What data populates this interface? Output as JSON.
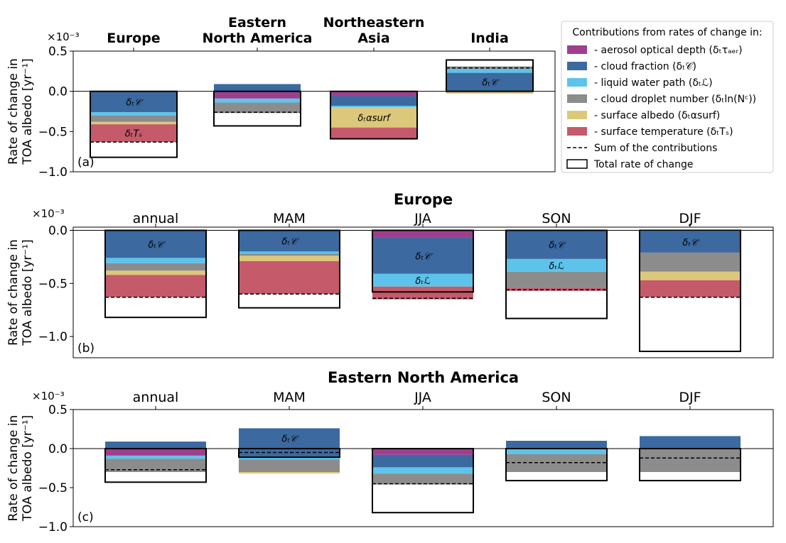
{
  "figure": {
    "common": {
      "ylabel_line1": "Rate of change in",
      "ylabel_line2": "TOA albedo [yr⁻¹]",
      "scale_label": "×10⁻³"
    },
    "legend": {
      "title": "Contributions from rates of change in:",
      "items": [
        {
          "label": "- aerosol optical depth (δₜτₐₑᵣ)",
          "color": "#9e3f8e",
          "kind": "patch"
        },
        {
          "label": "- cloud fraction (δₜ𝒞)",
          "color": "#3b69a0",
          "kind": "patch"
        },
        {
          "label": "- liquid water path (δₜℒ)",
          "color": "#5ec3ea",
          "kind": "patch"
        },
        {
          "label": "- cloud droplet number (δₜln(Nᶜ))",
          "color": "#8c8c8c",
          "kind": "patch"
        },
        {
          "label": "- surface albedo (δₜαsurf)",
          "color": "#dcc87a",
          "kind": "patch"
        },
        {
          "label": "- surface temperature (δₜTₛ)",
          "color": "#c55a6a",
          "kind": "patch"
        },
        {
          "label": "Sum of the contributions",
          "color": "#000000",
          "kind": "dash"
        },
        {
          "label": "Total rate of change",
          "color": "#000000",
          "kind": "box"
        }
      ]
    }
  },
  "chart_data": [
    {
      "type": "bar",
      "panel_label": "(a)",
      "title": "",
      "ylim": [
        -1.0,
        0.5
      ],
      "yticks": [
        "0.5",
        "0.0",
        "−0.5",
        "−1.0"
      ],
      "ytick_values": [
        0.5,
        0.0,
        -0.5,
        -1.0
      ],
      "categories": [
        "Europe",
        "Eastern\nNorth America",
        "Northeastern\nAsia",
        "India"
      ],
      "bars": [
        {
          "segments": [
            {
              "key": "cloud_fraction",
              "from": 0.0,
              "to": -0.26,
              "label": "δₜ𝒞"
            },
            {
              "key": "lwp",
              "from": -0.26,
              "to": -0.3
            },
            {
              "key": "droplet",
              "from": -0.3,
              "to": -0.38
            },
            {
              "key": "albedo",
              "from": -0.38,
              "to": -0.41
            },
            {
              "key": "temperature",
              "from": -0.41,
              "to": -0.63,
              "label": "δₜTₛ"
            }
          ],
          "sum": -0.63,
          "total": -0.82
        },
        {
          "segments": [
            {
              "key": "cloud_fraction",
              "from": 0.0,
              "to": 0.09
            },
            {
              "key": "aerosol",
              "from": 0.0,
              "to": -0.09
            },
            {
              "key": "lwp",
              "from": -0.09,
              "to": -0.14
            },
            {
              "key": "droplet",
              "from": -0.14,
              "to": -0.27
            }
          ],
          "sum": -0.26,
          "total": -0.43
        },
        {
          "segments": [
            {
              "key": "aerosol",
              "from": 0.0,
              "to": -0.06
            },
            {
              "key": "cloud_fraction",
              "from": -0.06,
              "to": -0.18
            },
            {
              "key": "lwp",
              "from": -0.18,
              "to": -0.2
            },
            {
              "key": "albedo",
              "from": -0.2,
              "to": -0.45,
              "label": "δₜαsurf"
            },
            {
              "key": "temperature",
              "from": -0.45,
              "to": -0.59
            }
          ],
          "sum": -0.59,
          "total": -0.59
        },
        {
          "segments": [
            {
              "key": "cloud_fraction",
              "from": 0.0,
              "to": 0.23,
              "label": "δₜ𝒞"
            },
            {
              "key": "lwp",
              "from": 0.23,
              "to": 0.28
            },
            {
              "key": "droplet",
              "from": 0.28,
              "to": 0.31
            },
            {
              "key": "albedo",
              "from": 0.0,
              "to": -0.03
            }
          ],
          "sum": 0.29,
          "total": 0.39
        }
      ]
    },
    {
      "type": "bar",
      "panel_label": "(b)",
      "title": "Europe",
      "ylim": [
        -1.2,
        0.03
      ],
      "yticks": [
        "0.0",
        "−0.5",
        "−1.0"
      ],
      "ytick_values": [
        0.0,
        -0.5,
        -1.0
      ],
      "categories": [
        "annual",
        "MAM",
        "JJA",
        "SON",
        "DJF"
      ],
      "bars": [
        {
          "segments": [
            {
              "key": "cloud_fraction",
              "from": 0.0,
              "to": -0.26,
              "label": "δₜ𝒞"
            },
            {
              "key": "lwp",
              "from": -0.26,
              "to": -0.31
            },
            {
              "key": "droplet",
              "from": -0.31,
              "to": -0.38
            },
            {
              "key": "albedo",
              "from": -0.38,
              "to": -0.42
            },
            {
              "key": "temperature",
              "from": -0.42,
              "to": -0.63
            }
          ],
          "sum": -0.63,
          "total": -0.82
        },
        {
          "segments": [
            {
              "key": "cloud_fraction",
              "from": 0.0,
              "to": -0.2,
              "label": "δₜ𝒞"
            },
            {
              "key": "lwp",
              "from": -0.2,
              "to": -0.22
            },
            {
              "key": "droplet",
              "from": -0.22,
              "to": -0.24
            },
            {
              "key": "albedo",
              "from": -0.24,
              "to": -0.29
            },
            {
              "key": "temperature",
              "from": -0.29,
              "to": -0.6
            }
          ],
          "sum": -0.6,
          "total": -0.73
        },
        {
          "segments": [
            {
              "key": "aerosol",
              "from": 0.0,
              "to": -0.07
            },
            {
              "key": "cloud_fraction",
              "from": -0.07,
              "to": -0.41,
              "label": "δₜ𝒞"
            },
            {
              "key": "lwp",
              "from": -0.41,
              "to": -0.53,
              "label": "δₜℒ"
            },
            {
              "key": "temperature",
              "from": -0.53,
              "to": -0.65
            }
          ],
          "sum": -0.64,
          "total": -0.58
        },
        {
          "segments": [
            {
              "key": "cloud_fraction",
              "from": 0.0,
              "to": -0.27,
              "label": "δₜ𝒞"
            },
            {
              "key": "lwp",
              "from": -0.27,
              "to": -0.39,
              "label": "δₜℒ"
            },
            {
              "key": "droplet",
              "from": -0.39,
              "to": -0.54
            },
            {
              "key": "temperature",
              "from": -0.54,
              "to": -0.57
            }
          ],
          "sum": -0.56,
          "total": -0.83
        },
        {
          "segments": [
            {
              "key": "lwp",
              "from": 0.0,
              "to": -0.01
            },
            {
              "key": "cloud_fraction",
              "from": -0.01,
              "to": -0.21,
              "label": "δₜ𝒞"
            },
            {
              "key": "droplet",
              "from": -0.21,
              "to": -0.39
            },
            {
              "key": "albedo",
              "from": -0.39,
              "to": -0.47
            },
            {
              "key": "temperature",
              "from": -0.47,
              "to": -0.63
            }
          ],
          "sum": -0.63,
          "total": -1.14
        }
      ]
    },
    {
      "type": "bar",
      "panel_label": "(c)",
      "title": "Eastern North America",
      "ylim": [
        -1.0,
        0.5
      ],
      "yticks": [
        "0.5",
        "0.0",
        "−0.5",
        "−1.0"
      ],
      "ytick_values": [
        0.5,
        0.0,
        -0.5,
        -1.0
      ],
      "categories": [
        "annual",
        "MAM",
        "JJA",
        "SON",
        "DJF"
      ],
      "bars": [
        {
          "segments": [
            {
              "key": "cloud_fraction",
              "from": 0.0,
              "to": 0.09
            },
            {
              "key": "aerosol",
              "from": 0.0,
              "to": -0.09
            },
            {
              "key": "lwp",
              "from": -0.09,
              "to": -0.13
            },
            {
              "key": "droplet",
              "from": -0.13,
              "to": -0.3
            }
          ],
          "sum": -0.27,
          "total": -0.43
        },
        {
          "segments": [
            {
              "key": "cloud_fraction",
              "from": 0.0,
              "to": 0.26,
              "label": "δₜ𝒞"
            },
            {
              "key": "cloud_fraction",
              "from": 0.0,
              "to": -0.1
            },
            {
              "key": "lwp",
              "from": -0.1,
              "to": -0.14
            },
            {
              "key": "droplet",
              "from": -0.14,
              "to": -0.3
            },
            {
              "key": "albedo",
              "from": -0.3,
              "to": -0.32
            }
          ],
          "sum": -0.05,
          "total": -0.11
        },
        {
          "segments": [
            {
              "key": "aerosol",
              "from": 0.0,
              "to": -0.08
            },
            {
              "key": "cloud_fraction",
              "from": -0.08,
              "to": -0.24
            },
            {
              "key": "lwp",
              "from": -0.24,
              "to": -0.32
            },
            {
              "key": "droplet",
              "from": -0.32,
              "to": -0.46
            }
          ],
          "sum": -0.45,
          "total": -0.82
        },
        {
          "segments": [
            {
              "key": "cloud_fraction",
              "from": 0.0,
              "to": 0.1
            },
            {
              "key": "lwp",
              "from": 0.0,
              "to": -0.07
            },
            {
              "key": "droplet",
              "from": -0.07,
              "to": -0.3
            }
          ],
          "sum": -0.18,
          "total": -0.41
        },
        {
          "segments": [
            {
              "key": "cloud_fraction",
              "from": 0.0,
              "to": 0.16
            },
            {
              "key": "droplet",
              "from": 0.0,
              "to": -0.3
            }
          ],
          "sum": -0.12,
          "total": -0.41
        }
      ]
    }
  ]
}
